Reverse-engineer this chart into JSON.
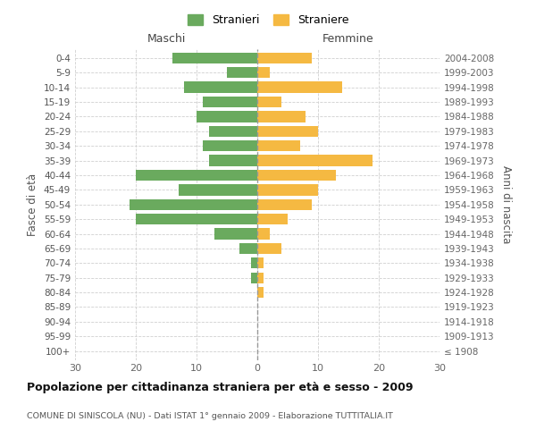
{
  "age_groups": [
    "100+",
    "95-99",
    "90-94",
    "85-89",
    "80-84",
    "75-79",
    "70-74",
    "65-69",
    "60-64",
    "55-59",
    "50-54",
    "45-49",
    "40-44",
    "35-39",
    "30-34",
    "25-29",
    "20-24",
    "15-19",
    "10-14",
    "5-9",
    "0-4"
  ],
  "birth_years": [
    "≤ 1908",
    "1909-1913",
    "1914-1918",
    "1919-1923",
    "1924-1928",
    "1929-1933",
    "1934-1938",
    "1939-1943",
    "1944-1948",
    "1949-1953",
    "1954-1958",
    "1959-1963",
    "1964-1968",
    "1969-1973",
    "1974-1978",
    "1979-1983",
    "1984-1988",
    "1989-1993",
    "1994-1998",
    "1999-2003",
    "2004-2008"
  ],
  "maschi": [
    0,
    0,
    0,
    0,
    0,
    1,
    1,
    3,
    7,
    20,
    21,
    13,
    20,
    8,
    9,
    8,
    10,
    9,
    12,
    5,
    14
  ],
  "femmine": [
    0,
    0,
    0,
    0,
    1,
    1,
    1,
    4,
    2,
    5,
    9,
    10,
    13,
    19,
    7,
    10,
    8,
    4,
    14,
    2,
    9
  ],
  "maschi_color": "#6aaa5e",
  "femmine_color": "#f5b942",
  "bg_color": "#ffffff",
  "grid_color": "#d0d0d0",
  "title": "Popolazione per cittadinanza straniera per età e sesso - 2009",
  "subtitle": "COMUNE DI SINISCOLA (NU) - Dati ISTAT 1° gennaio 2009 - Elaborazione TUTTITALIA.IT",
  "ylabel_left": "Fasce di età",
  "ylabel_right": "Anni di nascita",
  "label_maschi": "Maschi",
  "label_femmine": "Femmine",
  "legend_stranieri": "Stranieri",
  "legend_straniere": "Straniere",
  "xlim": 30,
  "bar_height": 0.75
}
